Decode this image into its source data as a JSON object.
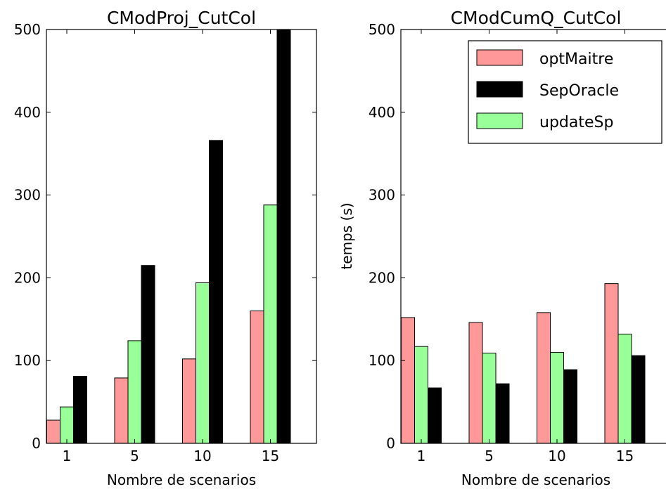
{
  "chart_data": [
    {
      "type": "bar",
      "title": "CModProj_CutCol",
      "xlabel": "Nombre de scenarios",
      "ylabel": "",
      "categories": [
        "1",
        "5",
        "10",
        "15"
      ],
      "ylim": [
        0,
        500
      ],
      "yticks": [
        0,
        100,
        200,
        300,
        400,
        500
      ],
      "grid": false,
      "series": [
        {
          "name": "optMaitre",
          "color": "#ff9999",
          "values": [
            28,
            79,
            102,
            160
          ]
        },
        {
          "name": "updateSp",
          "color": "#99ff99",
          "values": [
            44,
            124,
            194,
            288
          ]
        },
        {
          "name": "SepOracle",
          "color": "#000000",
          "values": [
            81,
            215,
            366,
            500
          ]
        }
      ]
    },
    {
      "type": "bar",
      "title": "CModCumQ_CutCol",
      "xlabel": "Nombre de scenarios",
      "ylabel": "temps (s)",
      "categories": [
        "1",
        "5",
        "10",
        "15"
      ],
      "ylim": [
        0,
        500
      ],
      "yticks": [
        0,
        100,
        200,
        300,
        400,
        500
      ],
      "grid": false,
      "legend_position": "top-right",
      "legend": [
        {
          "name": "optMaitre",
          "color": "#ff9999"
        },
        {
          "name": "SepOracle",
          "color": "#000000"
        },
        {
          "name": "updateSp",
          "color": "#99ff99"
        }
      ],
      "series": [
        {
          "name": "optMaitre",
          "color": "#ff9999",
          "values": [
            152,
            146,
            158,
            193
          ]
        },
        {
          "name": "updateSp",
          "color": "#99ff99",
          "values": [
            117,
            109,
            110,
            132
          ]
        },
        {
          "name": "SepOracle",
          "color": "#000000",
          "values": [
            67,
            72,
            89,
            106
          ]
        }
      ]
    }
  ]
}
